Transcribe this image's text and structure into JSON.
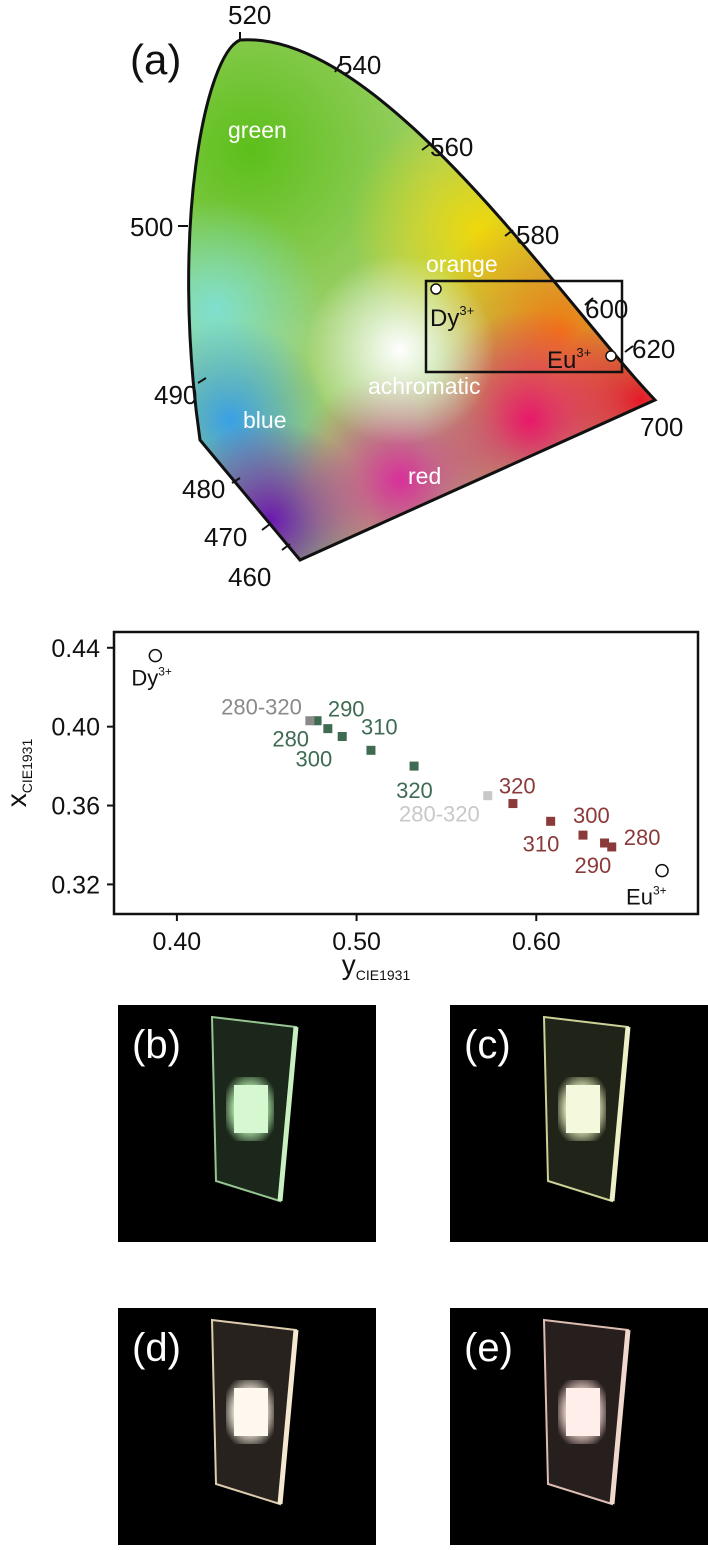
{
  "panel_a": {
    "label": "(a)",
    "wavelength_labels": [
      "520",
      "540",
      "560",
      "580",
      "600",
      "620",
      "700",
      "500",
      "490",
      "480",
      "470",
      "460"
    ],
    "region_labels": [
      "green",
      "orange",
      "achromatic",
      "blue",
      "red"
    ],
    "markers": [
      {
        "base": "Dy",
        "sup": "3+"
      },
      {
        "base": "Eu",
        "sup": "3+"
      }
    ]
  },
  "chart_data": {
    "type": "scatter",
    "title": "",
    "xlabel": {
      "base": "y",
      "sub": "CIE1931"
    },
    "ylabel": {
      "base": "x",
      "sub": "CIE1931"
    },
    "xlim": [
      0.365,
      0.69
    ],
    "ylim": [
      0.305,
      0.448
    ],
    "xticks": [
      0.4,
      0.5,
      0.6
    ],
    "yticks": [
      0.32,
      0.36,
      0.4,
      0.44
    ],
    "xtick_labels": [
      "0.40",
      "0.50",
      "0.60"
    ],
    "ytick_labels": [
      "0.32",
      "0.36",
      "0.40",
      "0.44"
    ],
    "grid": false,
    "colors": {
      "green_series": "#3f6b52",
      "red_series": "#8b3a3a",
      "grey_dark": "#8a8a8a",
      "grey_light": "#c8c8c8"
    },
    "references": [
      {
        "name": "Dy",
        "sup": "3+",
        "x": 0.388,
        "y": 0.436
      },
      {
        "name": "Eu",
        "sup": "3+",
        "x": 0.67,
        "y": 0.327
      }
    ],
    "series": [
      {
        "color": "#3f6b52",
        "points": [
          {
            "label": "280",
            "x": 0.478,
            "y": 0.403
          },
          {
            "label": "290",
            "x": 0.484,
            "y": 0.399
          },
          {
            "label": "300",
            "x": 0.492,
            "y": 0.395
          },
          {
            "label": "310",
            "x": 0.508,
            "y": 0.388
          },
          {
            "label": "320",
            "x": 0.532,
            "y": 0.38
          }
        ]
      },
      {
        "color": "#8b3a3a",
        "points": [
          {
            "label": "320",
            "x": 0.587,
            "y": 0.361
          },
          {
            "label": "310",
            "x": 0.608,
            "y": 0.352
          },
          {
            "label": "300",
            "x": 0.626,
            "y": 0.345
          },
          {
            "label": "290",
            "x": 0.638,
            "y": 0.341
          },
          {
            "label": "280",
            "x": 0.642,
            "y": 0.339
          }
        ]
      },
      {
        "color": "#8a8a8a",
        "points": [
          {
            "label": "280-320",
            "x": 0.474,
            "y": 0.403
          }
        ]
      },
      {
        "color": "#c8c8c8",
        "points": [
          {
            "label": "280-320",
            "x": 0.573,
            "y": 0.365
          }
        ]
      }
    ]
  },
  "photos": [
    {
      "label": "(b)",
      "glow": "#b8f0b0"
    },
    {
      "label": "(c)",
      "glow": "#e8f2c0"
    },
    {
      "label": "(d)",
      "glow": "#f6eee0"
    },
    {
      "label": "(e)",
      "glow": "#f8dcd6"
    }
  ]
}
